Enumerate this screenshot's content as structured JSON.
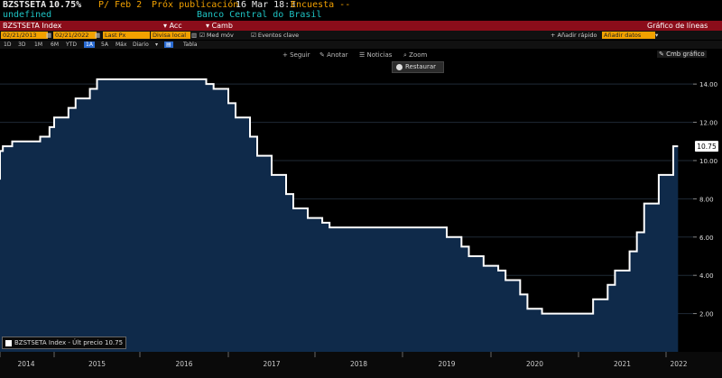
{
  "header": {
    "ticker": "BZSTSETA",
    "value": "10.75%",
    "period": "P/ Feb 2",
    "next_pub_label": "Próx publicación",
    "next_pub_value": "16 Mar 18:3",
    "survey": "Encuesta --",
    "sub_left": "undefined",
    "source": "Banco Central do Brasil"
  },
  "toolbar": {
    "index": "BZSTSETA Index",
    "acc": "Acc",
    "camb": "Camb",
    "chart_title": "Gráfico de líneas"
  },
  "fields": {
    "start_date": "02/21/2013",
    "end_date": "02/21/2022",
    "last_px": "Last Px",
    "div_local": "Divisa local",
    "med_mov": "Med móv",
    "eventos": "Eventos clave",
    "anadir": "Añadir rápido",
    "buscar": "Añadir datos"
  },
  "periods": {
    "items": [
      "1D",
      "3D",
      "1M",
      "6M",
      "YTD",
      "1A",
      "5A",
      "Máx",
      "Diario"
    ],
    "tabla": "Tabla"
  },
  "tools": {
    "seguir": "Seguir",
    "anotar": "Anotar",
    "noticias": "Noticias",
    "zoom": "Zoom",
    "restaurar": "Restaurar",
    "cmb_grafico": "Cmb gráfico"
  },
  "legend": {
    "label": "BZSTSETA Index - Últ precio",
    "value": "10.75"
  },
  "colors": {
    "fill": "#0f2a4a",
    "line": "#ffffff",
    "header_bar": "#8b0d1a",
    "field": "#f2a100"
  },
  "chart_data": {
    "type": "area",
    "title": "",
    "xlabel": "",
    "ylabel": "",
    "x_ticks": [
      "2014",
      "2015",
      "2016",
      "2017",
      "2018",
      "2019",
      "2020",
      "2021",
      "2022"
    ],
    "y_ticks": [
      "2.00",
      "4.00",
      "6.00",
      "8.00",
      "10.00",
      "12.00",
      "14.00"
    ],
    "ylim": [
      0,
      15.8
    ],
    "last_value_label": "10.75",
    "series": [
      {
        "points": [
          [
            "2013-09",
            9.0
          ],
          [
            "2013-10",
            9.5
          ],
          [
            "2013-11",
            10.0
          ],
          [
            "2014-01",
            10.5
          ],
          [
            "2014-02",
            10.75
          ],
          [
            "2014-04",
            11.0
          ],
          [
            "2014-10",
            11.25
          ],
          [
            "2014-12",
            11.75
          ],
          [
            "2015-01",
            12.25
          ],
          [
            "2015-03",
            12.75
          ],
          [
            "2015-04",
            13.25
          ],
          [
            "2015-06",
            13.75
          ],
          [
            "2015-07",
            14.25
          ],
          [
            "2016-10",
            14.0
          ],
          [
            "2016-11",
            13.75
          ],
          [
            "2017-01",
            13.0
          ],
          [
            "2017-02",
            12.25
          ],
          [
            "2017-04",
            11.25
          ],
          [
            "2017-05",
            10.25
          ],
          [
            "2017-07",
            9.25
          ],
          [
            "2017-09",
            8.25
          ],
          [
            "2017-10",
            7.5
          ],
          [
            "2017-12",
            7.0
          ],
          [
            "2018-02",
            6.75
          ],
          [
            "2018-03",
            6.5
          ],
          [
            "2019-07",
            6.0
          ],
          [
            "2019-09",
            5.5
          ],
          [
            "2019-10",
            5.0
          ],
          [
            "2019-12",
            4.5
          ],
          [
            "2020-02",
            4.25
          ],
          [
            "2020-03",
            3.75
          ],
          [
            "2020-05",
            3.0
          ],
          [
            "2020-06",
            2.25
          ],
          [
            "2020-08",
            2.0
          ],
          [
            "2021-03",
            2.75
          ],
          [
            "2021-05",
            3.5
          ],
          [
            "2021-06",
            4.25
          ],
          [
            "2021-08",
            5.25
          ],
          [
            "2021-09",
            6.25
          ],
          [
            "2021-10",
            7.75
          ],
          [
            "2021-12",
            9.25
          ],
          [
            "2022-02",
            10.75
          ],
          [
            "2022-02-21",
            10.75
          ]
        ]
      }
    ]
  }
}
